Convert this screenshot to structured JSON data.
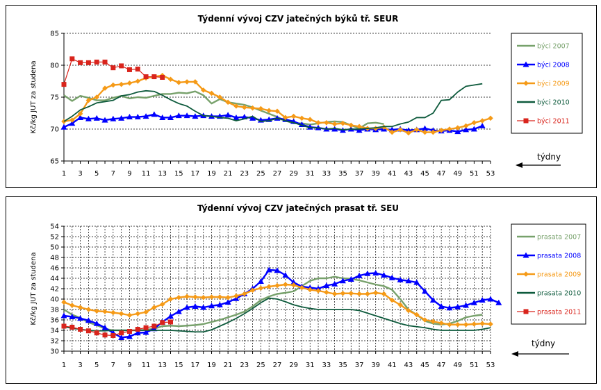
{
  "colors": {
    "s2007": "#77a16b",
    "s2008": "#0000ff",
    "s2009": "#f59a17",
    "s2010": "#0d5a3c",
    "s2011": "#d9241c"
  },
  "chart_data": [
    {
      "type": "line",
      "title": "Týdenní vývoj CZV jatečných býků tř. SEUR",
      "ylabel": "Kč/kg JUT za studena",
      "xlabel": "týdny",
      "ylim": [
        65,
        85
      ],
      "yticks": [
        65,
        70,
        75,
        80,
        85
      ],
      "xticks": [
        1,
        3,
        5,
        7,
        9,
        11,
        13,
        15,
        17,
        19,
        21,
        23,
        25,
        27,
        29,
        31,
        33,
        35,
        37,
        39,
        41,
        43,
        45,
        47,
        49,
        51,
        53
      ],
      "grid": "horizontal-dashed",
      "legend": "right",
      "series": [
        {
          "name": "býci 2007",
          "key": "s2007",
          "x_start": 1,
          "values": [
            75.3,
            74.4,
            75.2,
            74.9,
            74.5,
            74.5,
            74.9,
            75.2,
            74.8,
            75.0,
            74.9,
            75.2,
            75.5,
            75.5,
            75.7,
            75.6,
            75.9,
            75.3,
            74.0,
            74.7,
            74.2,
            74.0,
            73.8,
            73.4,
            72.9,
            72.4,
            71.9,
            71.3,
            70.9,
            70.9,
            70.7,
            70.9,
            71.1,
            71.2,
            71.1,
            70.6,
            70.1,
            70.9,
            71.0,
            70.8
          ]
        },
        {
          "name": "býci 2008",
          "key": "s2008",
          "x_start": 1,
          "values": [
            70.3,
            70.9,
            71.8,
            71.6,
            71.7,
            71.4,
            71.6,
            71.7,
            71.9,
            71.9,
            72.0,
            72.3,
            71.8,
            71.8,
            72.1,
            72.1,
            72.0,
            72.1,
            72.0,
            72.0,
            72.2,
            71.8,
            71.9,
            71.7,
            71.4,
            71.5,
            71.7,
            71.5,
            71.2,
            70.7,
            70.3,
            70.2,
            70.0,
            70.0,
            69.8,
            70.0,
            69.8,
            70.0,
            69.9,
            70.0,
            69.9,
            70.0,
            69.8,
            69.9,
            70.1,
            69.8,
            69.7,
            69.8,
            69.6,
            69.9,
            70.0,
            70.5
          ]
        },
        {
          "name": "býci 2009",
          "key": "s2009",
          "x_start": 1,
          "values": [
            71.2,
            71.4,
            72.4,
            74.5,
            75.0,
            76.4,
            76.9,
            77.0,
            77.2,
            77.5,
            78.0,
            78.2,
            78.4,
            77.8,
            77.3,
            77.4,
            77.4,
            76.1,
            75.6,
            75.0,
            74.2,
            73.6,
            73.4,
            73.3,
            73.2,
            72.9,
            72.8,
            71.8,
            72.0,
            71.7,
            71.5,
            71.0,
            71.0,
            70.8,
            70.9,
            70.6,
            70.4,
            70.1,
            70.1,
            70.3,
            69.5,
            69.9,
            69.4,
            69.9,
            69.5,
            69.5,
            69.8,
            70.0,
            70.2,
            70.5,
            71.0,
            71.3,
            71.7
          ]
        },
        {
          "name": "býci 2010",
          "key": "s2010",
          "x_start": 1,
          "values": [
            71.2,
            72.0,
            73.0,
            73.5,
            74.1,
            74.3,
            74.5,
            75.2,
            75.4,
            75.8,
            76.0,
            75.9,
            75.3,
            74.6,
            74.0,
            73.6,
            72.8,
            72.1,
            72.0,
            71.8,
            71.7,
            71.3,
            71.6,
            72.0,
            71.2,
            71.3,
            71.7,
            71.3,
            71.0,
            70.6,
            70.2,
            70.2,
            70.0,
            70.1,
            69.9,
            70.0,
            70.0,
            70.1,
            70.2,
            70.4,
            70.4,
            70.8,
            71.1,
            71.8,
            71.8,
            72.5,
            74.5,
            74.6,
            75.8,
            76.7,
            76.9,
            77.1
          ]
        },
        {
          "name": "býci 2011",
          "key": "s2011",
          "x_start": 1,
          "values": [
            77.0,
            81.0,
            80.4,
            80.4,
            80.5,
            80.5,
            79.6,
            79.9,
            79.3,
            79.4,
            78.2,
            78.2,
            78.1
          ]
        }
      ]
    },
    {
      "type": "line",
      "title": "Týdenní vývoj CZV jatečných prasat tř. SEU",
      "ylabel": "Kč/kg JUT za studena",
      "xlabel": "týdny",
      "ylim": [
        30,
        54
      ],
      "yticks": [
        30,
        32,
        34,
        36,
        38,
        40,
        42,
        44,
        46,
        48,
        50,
        52,
        54
      ],
      "xticks": [
        1,
        3,
        5,
        7,
        9,
        11,
        13,
        15,
        17,
        19,
        21,
        23,
        25,
        27,
        29,
        31,
        33,
        35,
        37,
        39,
        41,
        43,
        45,
        47,
        49,
        51,
        53
      ],
      "grid": "both-dashed",
      "legend": "right",
      "series": [
        {
          "name": "prasata 2007",
          "key": "s2007",
          "x_start": 1,
          "values": [
            38.0,
            37.0,
            36.4,
            35.5,
            35.0,
            34.3,
            34.0,
            34.0,
            34.0,
            34.0,
            34.1,
            34.3,
            34.8,
            34.9,
            34.8,
            34.9,
            35.0,
            35.2,
            35.6,
            36.0,
            36.5,
            37.0,
            37.6,
            38.6,
            39.8,
            40.5,
            41.0,
            41.2,
            41.5,
            42.5,
            43.5,
            44.0,
            44.0,
            44.3,
            44.0,
            43.9,
            43.6,
            43.2,
            42.8,
            42.5,
            41.8,
            40.0,
            38.0,
            37.0,
            35.8,
            35.3,
            35.1,
            35.3,
            35.8,
            36.5,
            36.8,
            37.0
          ]
        },
        {
          "name": "prasata 2008",
          "key": "s2008",
          "x_start": 1,
          "values": [
            36.8,
            36.6,
            36.3,
            35.9,
            35.3,
            34.5,
            33.5,
            32.6,
            32.8,
            33.5,
            33.6,
            34.3,
            35.6,
            36.7,
            37.6,
            38.4,
            38.6,
            38.4,
            38.7,
            38.9,
            39.4,
            40.1,
            41.0,
            42.0,
            43.4,
            45.6,
            45.5,
            44.6,
            43.2,
            42.4,
            42.2,
            42.0,
            42.6,
            42.9,
            43.5,
            43.8,
            44.5,
            44.9,
            45.0,
            44.6,
            44.1,
            43.7,
            43.5,
            43.2,
            41.5,
            39.8,
            38.6,
            38.3,
            38.5,
            38.8,
            39.3,
            39.8,
            40.0,
            39.3
          ]
        },
        {
          "name": "prasata 2009",
          "key": "s2009",
          "x_start": 1,
          "values": [
            39.4,
            38.8,
            38.4,
            38.0,
            37.7,
            37.6,
            37.4,
            37.2,
            36.9,
            37.2,
            37.5,
            38.4,
            39.0,
            40.0,
            40.3,
            40.5,
            40.4,
            40.3,
            40.4,
            40.4,
            40.3,
            40.6,
            41.0,
            41.7,
            42.1,
            42.4,
            42.6,
            42.8,
            42.7,
            42.2,
            41.8,
            41.6,
            41.3,
            41.0,
            41.1,
            41.1,
            41.0,
            41.0,
            41.2,
            41.0,
            39.8,
            38.9,
            37.8,
            37.0,
            36.0,
            35.7,
            35.4,
            35.1,
            35.1,
            35.1,
            35.2,
            35.3,
            35.2
          ]
        },
        {
          "name": "prasata 2010",
          "key": "s2010",
          "x_start": 1,
          "values": [
            34.7,
            34.4,
            34.2,
            34.0,
            33.9,
            33.9,
            34.0,
            34.0,
            34.0,
            34.0,
            34.0,
            34.0,
            34.0,
            34.0,
            33.9,
            33.8,
            33.7,
            33.7,
            34.1,
            34.8,
            35.5,
            36.3,
            37.2,
            38.2,
            39.3,
            40.2,
            40.0,
            39.5,
            38.9,
            38.5,
            38.2,
            38.0,
            38.0,
            38.0,
            38.0,
            38.0,
            37.8,
            37.3,
            36.8,
            36.3,
            35.8,
            35.3,
            34.9,
            34.7,
            34.5,
            34.2,
            34.0,
            34.0,
            34.0,
            34.0,
            34.0,
            34.2,
            34.5
          ]
        },
        {
          "name": "prasata 2011",
          "key": "s2011",
          "x_start": 1,
          "values": [
            34.8,
            34.6,
            34.2,
            33.9,
            33.5,
            33.1,
            33.0,
            33.5,
            33.8,
            34.2,
            34.5,
            34.8,
            35.5,
            35.6
          ]
        }
      ]
    }
  ]
}
